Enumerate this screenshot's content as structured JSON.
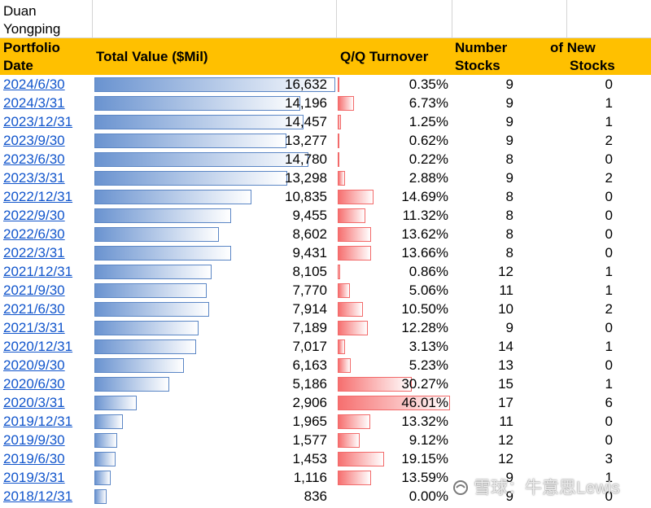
{
  "owner": "Duan Yongping",
  "headers": {
    "date": "Portfolio Date",
    "value": "Total Value ($Mil)",
    "turnover": "Q/Q Turnover",
    "num_left": "Number",
    "num_left2": "Stocks",
    "new_top": "of New",
    "new_bottom": "Stocks"
  },
  "colors": {
    "header_bg": "#ffc000",
    "value_bar": "#6a93d0",
    "turnover_bar": "#f66f6f",
    "link": "#1155cc"
  },
  "rows": [
    {
      "date": "2024/6/30",
      "value": "16,632",
      "value_num": 16632,
      "turnover": "0.35%",
      "turnover_num": 0.35,
      "num": "9",
      "new": "0"
    },
    {
      "date": "2024/3/31",
      "value": "14,196",
      "value_num": 14196,
      "turnover": "6.73%",
      "turnover_num": 6.73,
      "num": "9",
      "new": "1"
    },
    {
      "date": "2023/12/31",
      "value": "14,457",
      "value_num": 14457,
      "turnover": "1.25%",
      "turnover_num": 1.25,
      "num": "9",
      "new": "1"
    },
    {
      "date": "2023/9/30",
      "value": "13,277",
      "value_num": 13277,
      "turnover": "0.62%",
      "turnover_num": 0.62,
      "num": "9",
      "new": "2"
    },
    {
      "date": "2023/6/30",
      "value": "14,780",
      "value_num": 14780,
      "turnover": "0.22%",
      "turnover_num": 0.22,
      "num": "8",
      "new": "0"
    },
    {
      "date": "2023/3/31",
      "value": "13,298",
      "value_num": 13298,
      "turnover": "2.88%",
      "turnover_num": 2.88,
      "num": "9",
      "new": "2"
    },
    {
      "date": "2022/12/31",
      "value": "10,835",
      "value_num": 10835,
      "turnover": "14.69%",
      "turnover_num": 14.69,
      "num": "8",
      "new": "0"
    },
    {
      "date": "2022/9/30",
      "value": "9,455",
      "value_num": 9455,
      "turnover": "11.32%",
      "turnover_num": 11.32,
      "num": "8",
      "new": "0"
    },
    {
      "date": "2022/6/30",
      "value": "8,602",
      "value_num": 8602,
      "turnover": "13.62%",
      "turnover_num": 13.62,
      "num": "8",
      "new": "0"
    },
    {
      "date": "2022/3/31",
      "value": "9,431",
      "value_num": 9431,
      "turnover": "13.66%",
      "turnover_num": 13.66,
      "num": "8",
      "new": "0"
    },
    {
      "date": "2021/12/31",
      "value": "8,105",
      "value_num": 8105,
      "turnover": "0.86%",
      "turnover_num": 0.86,
      "num": "12",
      "new": "1"
    },
    {
      "date": "2021/9/30",
      "value": "7,770",
      "value_num": 7770,
      "turnover": "5.06%",
      "turnover_num": 5.06,
      "num": "11",
      "new": "1"
    },
    {
      "date": "2021/6/30",
      "value": "7,914",
      "value_num": 7914,
      "turnover": "10.50%",
      "turnover_num": 10.5,
      "num": "10",
      "new": "2"
    },
    {
      "date": "2021/3/31",
      "value": "7,189",
      "value_num": 7189,
      "turnover": "12.28%",
      "turnover_num": 12.28,
      "num": "9",
      "new": "0"
    },
    {
      "date": "2020/12/31",
      "value": "7,017",
      "value_num": 7017,
      "turnover": "3.13%",
      "turnover_num": 3.13,
      "num": "14",
      "new": "1"
    },
    {
      "date": "2020/9/30",
      "value": "6,163",
      "value_num": 6163,
      "turnover": "5.23%",
      "turnover_num": 5.23,
      "num": "13",
      "new": "0"
    },
    {
      "date": "2020/6/30",
      "value": "5,186",
      "value_num": 5186,
      "turnover": "30.27%",
      "turnover_num": 30.27,
      "num": "15",
      "new": "1"
    },
    {
      "date": "2020/3/31",
      "value": "2,906",
      "value_num": 2906,
      "turnover": "46.01%",
      "turnover_num": 46.01,
      "num": "17",
      "new": "6"
    },
    {
      "date": "2019/12/31",
      "value": "1,965",
      "value_num": 1965,
      "turnover": "13.32%",
      "turnover_num": 13.32,
      "num": "11",
      "new": "0"
    },
    {
      "date": "2019/9/30",
      "value": "1,577",
      "value_num": 1577,
      "turnover": "9.12%",
      "turnover_num": 9.12,
      "num": "12",
      "new": "0"
    },
    {
      "date": "2019/6/30",
      "value": "1,453",
      "value_num": 1453,
      "turnover": "19.15%",
      "turnover_num": 19.15,
      "num": "12",
      "new": "3"
    },
    {
      "date": "2019/3/31",
      "value": "1,116",
      "value_num": 1116,
      "turnover": "13.59%",
      "turnover_num": 13.59,
      "num": "9",
      "new": "1"
    },
    {
      "date": "2018/12/31",
      "value": "836",
      "value_num": 836,
      "turnover": "0.00%",
      "turnover_num": 0,
      "num": "9",
      "new": "0"
    }
  ],
  "watermark": {
    "icon": "snowball-icon",
    "text": "雪球：牛意思Lewis"
  }
}
